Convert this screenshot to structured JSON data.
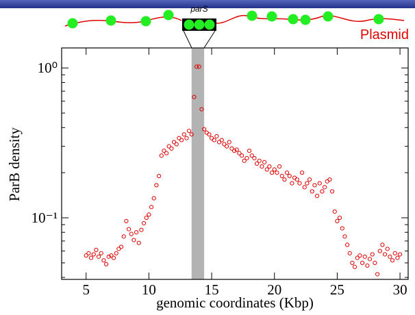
{
  "chart_data": {
    "type": "scatter",
    "ylabel": "ParB density",
    "xlabel": "genomic coordinates (Kbp)",
    "annotations": [
      "parS",
      "Plasmid"
    ],
    "highlight_span": [
      13.4,
      14.4
    ],
    "highlight_color": "#b3b3b3",
    "color": "#e00000",
    "log_y": true,
    "xlim": [
      3.05,
      30.65
    ],
    "ylim": [
      0.0388,
      1.36
    ],
    "xticks": [
      5,
      10,
      15,
      20,
      25,
      30
    ],
    "yticks": [
      {
        "value": 0.1,
        "label": "10⁻¹"
      },
      {
        "value": 1,
        "label": "10⁰"
      }
    ],
    "minor_yticks": [
      0.04,
      0.05,
      0.06,
      0.07,
      0.08,
      0.09,
      0.2,
      0.3,
      0.4,
      0.5,
      0.6,
      0.7,
      0.8,
      0.9
    ],
    "x": [
      5.0,
      5.2,
      5.4,
      5.6,
      5.8,
      6.0,
      6.2,
      6.4,
      6.6,
      6.8,
      7.0,
      7.2,
      7.4,
      7.6,
      7.8,
      8.0,
      8.2,
      8.4,
      8.6,
      8.8,
      9.0,
      9.2,
      9.4,
      9.6,
      9.8,
      10.0,
      10.2,
      10.4,
      10.6,
      10.8,
      11.0,
      11.2,
      11.4,
      11.6,
      11.8,
      12.0,
      12.2,
      12.4,
      12.6,
      12.8,
      13.0,
      13.2,
      13.4,
      13.6,
      13.8,
      14.0,
      14.2,
      14.4,
      14.6,
      14.8,
      15.0,
      15.2,
      15.4,
      15.6,
      15.8,
      16.0,
      16.2,
      16.4,
      16.6,
      16.8,
      17.0,
      17.2,
      17.4,
      17.6,
      17.8,
      18.0,
      18.2,
      18.4,
      18.6,
      18.8,
      19.0,
      19.2,
      19.4,
      19.6,
      19.8,
      20.0,
      20.2,
      20.4,
      20.6,
      20.8,
      21.0,
      21.2,
      21.4,
      21.6,
      21.8,
      22.0,
      22.2,
      22.4,
      22.6,
      22.8,
      23.0,
      23.2,
      23.4,
      23.6,
      23.8,
      24.0,
      24.2,
      24.4,
      24.6,
      24.8,
      25.0,
      25.2,
      25.4,
      25.6,
      25.8,
      26.0,
      26.2,
      26.4,
      26.6,
      26.8,
      27.0,
      27.2,
      27.4,
      27.6,
      27.8,
      28.0,
      28.2,
      28.4,
      28.6,
      28.8,
      29.0,
      29.2,
      29.4,
      29.6,
      29.8,
      30.0
    ],
    "values": [
      0.056,
      0.058,
      0.054,
      0.057,
      0.061,
      0.055,
      0.058,
      0.052,
      0.049,
      0.055,
      0.056,
      0.054,
      0.058,
      0.062,
      0.064,
      0.075,
      0.095,
      0.084,
      0.078,
      0.071,
      0.08,
      0.068,
      0.083,
      0.092,
      0.1,
      0.105,
      0.118,
      0.135,
      0.165,
      0.19,
      0.26,
      0.28,
      0.27,
      0.3,
      0.29,
      0.32,
      0.31,
      0.34,
      0.33,
      0.36,
      0.34,
      0.38,
      0.36,
      0.64,
      1.02,
      1.02,
      0.53,
      0.39,
      0.37,
      0.36,
      0.34,
      0.33,
      0.35,
      0.32,
      0.33,
      0.31,
      0.3,
      0.32,
      0.29,
      0.28,
      0.285,
      0.27,
      0.26,
      0.24,
      0.25,
      0.28,
      0.26,
      0.25,
      0.23,
      0.24,
      0.22,
      0.235,
      0.21,
      0.22,
      0.2,
      0.21,
      0.2,
      0.22,
      0.19,
      0.18,
      0.2,
      0.19,
      0.17,
      0.185,
      0.18,
      0.17,
      0.2,
      0.16,
      0.17,
      0.18,
      0.15,
      0.165,
      0.14,
      0.17,
      0.15,
      0.16,
      0.175,
      0.18,
      0.15,
      0.11,
      0.095,
      0.1,
      0.085,
      0.075,
      0.066,
      0.058,
      0.05,
      0.047,
      0.054,
      0.056,
      0.05,
      0.055,
      0.048,
      0.053,
      0.057,
      0.05,
      0.042,
      0.06,
      0.066,
      0.057,
      0.062,
      0.055,
      0.052,
      0.058,
      0.054,
      0.057
    ]
  }
}
